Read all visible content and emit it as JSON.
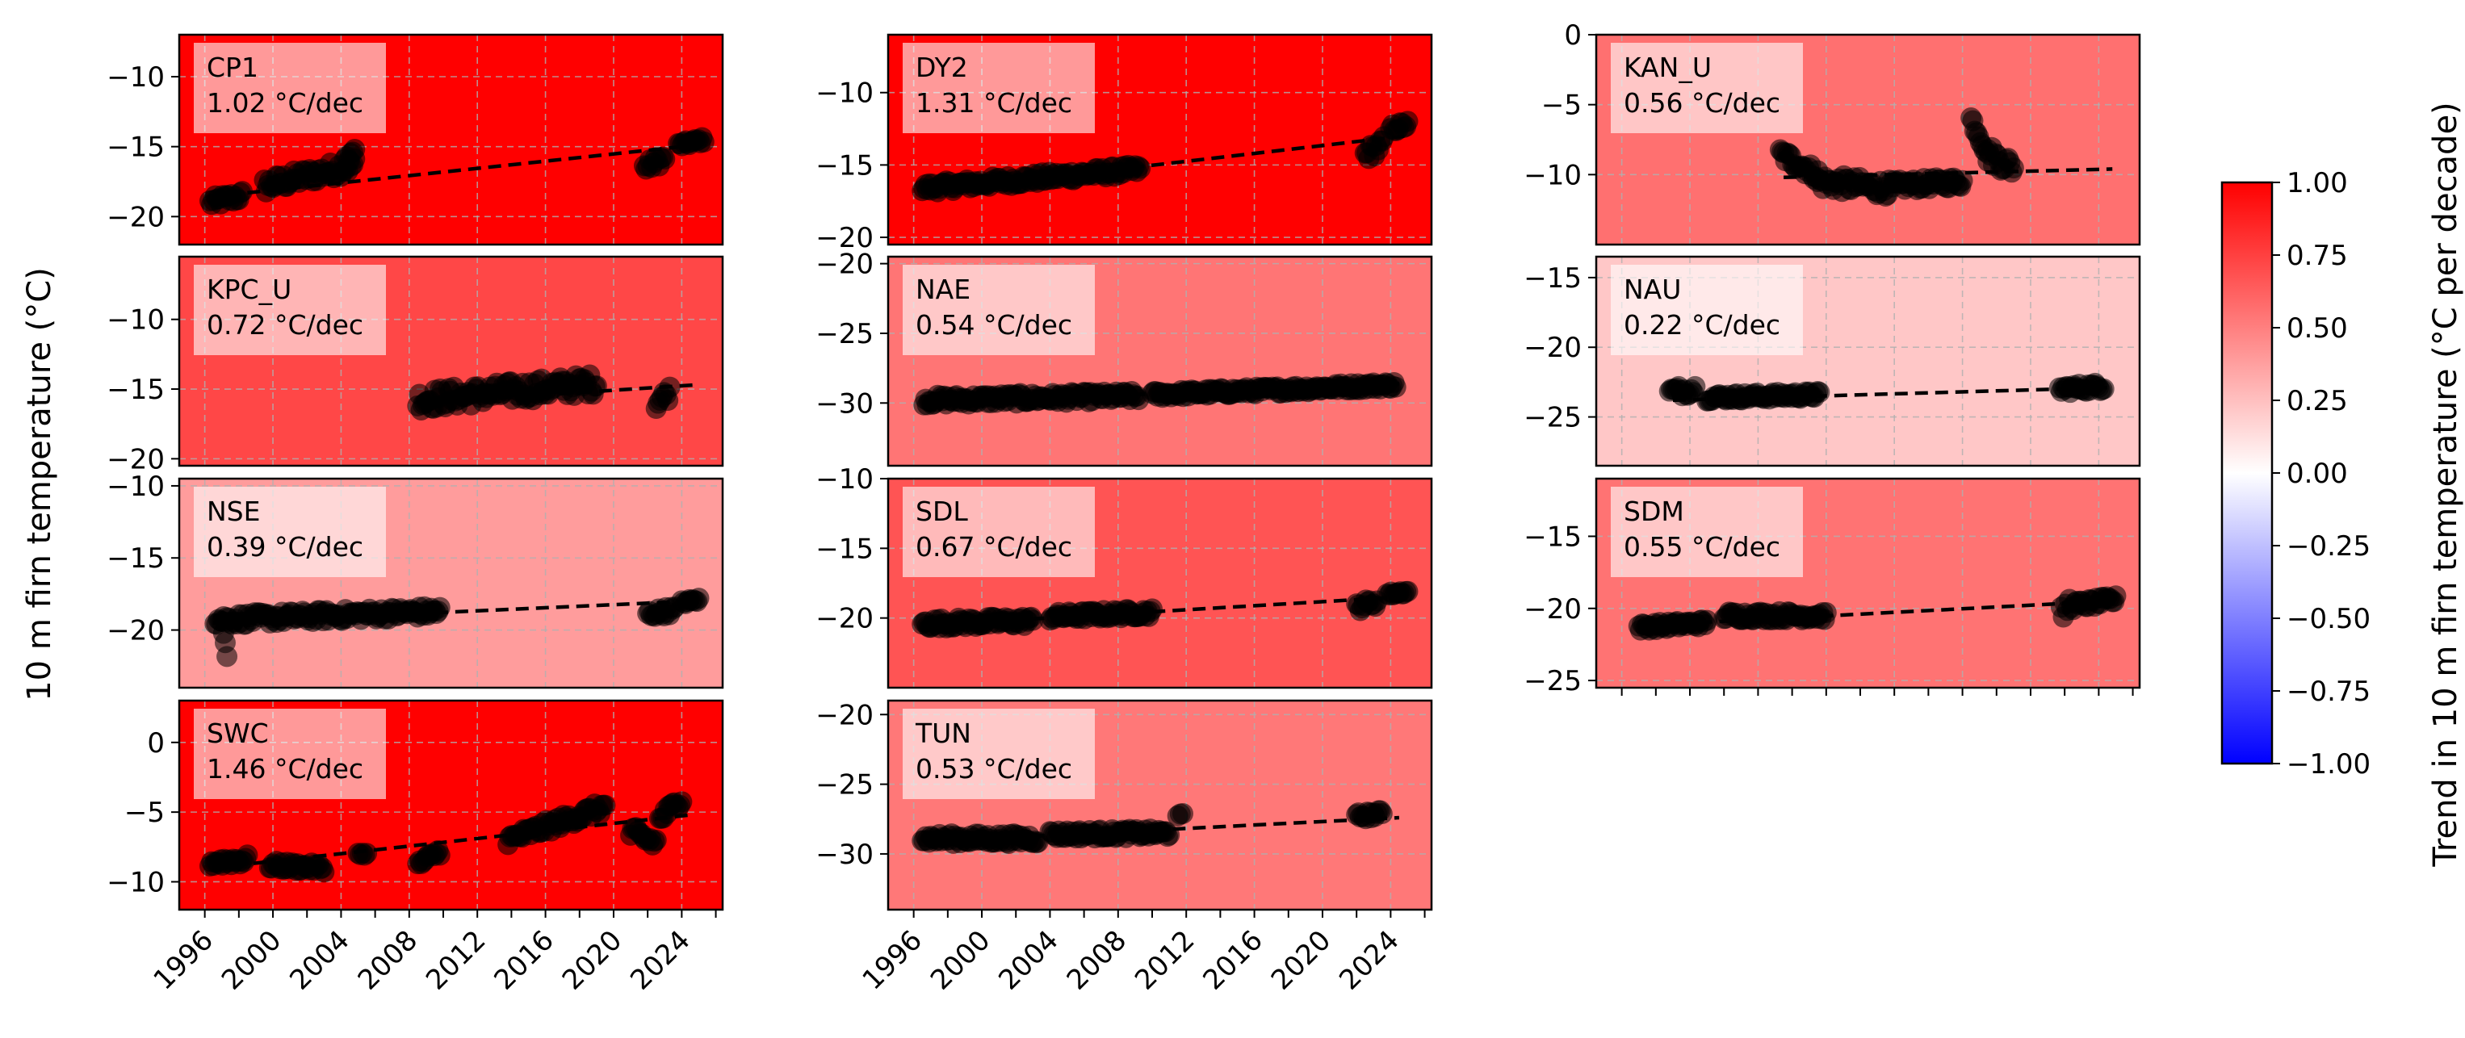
{
  "figure": {
    "ylabel": "10 m firn temperature (°C)",
    "colorbar": {
      "label": "Trend in 10 m firn temperature (°C per decade)",
      "min": -1.0,
      "max": 1.0,
      "ticks": [
        "1.00",
        "0.75",
        "0.50",
        "0.25",
        "0.00",
        "−0.25",
        "−0.50",
        "−0.75",
        "−1.00"
      ],
      "colormap": "bwr",
      "colors": {
        "low": "#0000ff",
        "mid": "#ffffff",
        "high": "#ff0000"
      }
    },
    "x_tick_labels": [
      "1996",
      "2000",
      "2004",
      "2008",
      "2012",
      "2016",
      "2020",
      "2024"
    ]
  },
  "chart_data": [
    {
      "type": "scatter",
      "site": "CP1",
      "trend_label": "1.02 °C/dec",
      "trend": 1.02,
      "ylim": [
        -22,
        -7
      ],
      "yticks": [
        -20,
        -15,
        -10
      ],
      "trend_line": [
        [
          1998.5,
          -18.3
        ],
        [
          2024.8,
          -14.9
        ]
      ],
      "segments": [
        {
          "x": [
            1996.3,
            1998.2
          ],
          "y": [
            -19.0,
            -18.5
          ],
          "noise": 0.4
        },
        {
          "x": [
            1999.5,
            2004.8
          ],
          "y": [
            -17.8,
            -16.3
          ],
          "noise": 0.6
        },
        {
          "x": [
            2004.2,
            2004.8
          ],
          "y": [
            -16.0,
            -15.2
          ],
          "noise": 0.3
        },
        {
          "x": [
            2021.8,
            2023.0
          ],
          "y": [
            -16.5,
            -15.8
          ],
          "noise": 0.4
        },
        {
          "x": [
            2023.8,
            2025.3
          ],
          "y": [
            -14.9,
            -14.5
          ],
          "noise": 0.2
        }
      ]
    },
    {
      "type": "scatter",
      "site": "DY2",
      "trend_label": "1.31 °C/dec",
      "trend": 1.31,
      "ylim": [
        -20.5,
        -6
      ],
      "yticks": [
        -20,
        -15,
        -10
      ],
      "trend_line": [
        [
          1997.0,
          -16.8
        ],
        [
          2024.8,
          -13.0
        ]
      ],
      "segments": [
        {
          "x": [
            1996.5,
            2009.3
          ],
          "y": [
            -16.6,
            -15.3
          ],
          "noise": 0.35
        },
        {
          "x": [
            2022.5,
            2023.6
          ],
          "y": [
            -14.3,
            -13.5
          ],
          "noise": 0.5
        },
        {
          "x": [
            2024.0,
            2025.0
          ],
          "y": [
            -12.5,
            -12.2
          ],
          "noise": 0.3
        }
      ]
    },
    {
      "type": "scatter",
      "site": "KAN_U",
      "trend_label": "0.56 °C/dec",
      "trend": 0.56,
      "ylim": [
        -15,
        0
      ],
      "yticks": [
        -10,
        -5,
        0
      ],
      "trend_line": [
        [
          2005.5,
          -10.2
        ],
        [
          2024.8,
          -9.6
        ]
      ],
      "segments": [
        {
          "x": [
            2005.3,
            2007.5
          ],
          "y": [
            -8.5,
            -10.0
          ],
          "noise": 0.5
        },
        {
          "x": [
            2007.5,
            2012.0
          ],
          "y": [
            -10.5,
            -11.0
          ],
          "noise": 0.6
        },
        {
          "x": [
            2012.0,
            2016.0
          ],
          "y": [
            -10.8,
            -10.5
          ],
          "noise": 0.4
        },
        {
          "x": [
            2016.5,
            2017.5
          ],
          "y": [
            -6.0,
            -8.5
          ],
          "noise": 0.4
        },
        {
          "x": [
            2017.5,
            2019.0
          ],
          "y": [
            -8.5,
            -9.5
          ],
          "noise": 0.7
        }
      ]
    },
    {
      "type": "scatter",
      "site": "KPC_U",
      "trend_label": "0.72 °C/dec",
      "trend": 0.72,
      "ylim": [
        -20.5,
        -5.5
      ],
      "yticks": [
        -20,
        -15,
        -10
      ],
      "trend_line": [
        [
          2008.5,
          -16.0
        ],
        [
          2024.8,
          -14.7
        ]
      ],
      "segments": [
        {
          "x": [
            2008.5,
            2019.0
          ],
          "y": [
            -15.8,
            -14.6
          ],
          "noise": 0.75
        },
        {
          "x": [
            2022.5,
            2023.3
          ],
          "y": [
            -16.0,
            -15.2
          ],
          "noise": 0.5
        }
      ]
    },
    {
      "type": "scatter",
      "site": "NAE",
      "trend_label": "0.54 °C/dec",
      "trend": 0.54,
      "ylim": [
        -34.5,
        -19.5
      ],
      "yticks": [
        -30,
        -25,
        -20
      ],
      "trend_line": [
        [
          1997.0,
          -30.0
        ],
        [
          2024.5,
          -28.6
        ]
      ],
      "segments": [
        {
          "x": [
            1996.6,
            2009.2
          ],
          "y": [
            -29.8,
            -29.5
          ],
          "noise": 0.35
        },
        {
          "x": [
            2010.0,
            2024.3
          ],
          "y": [
            -29.4,
            -28.7
          ],
          "noise": 0.25
        }
      ]
    },
    {
      "type": "scatter",
      "site": "NAU",
      "trend_label": "0.22 °C/dec",
      "trend": 0.22,
      "ylim": [
        -28.5,
        -13.5
      ],
      "yticks": [
        -25,
        -20,
        -15
      ],
      "trend_line": [
        [
          1999.0,
          -23.8
        ],
        [
          2024.5,
          -22.9
        ]
      ],
      "segments": [
        {
          "x": [
            1998.8,
            2000.3
          ],
          "y": [
            -23.2,
            -23.0
          ],
          "noise": 0.4
        },
        {
          "x": [
            2001.0,
            2007.6
          ],
          "y": [
            -23.6,
            -23.4
          ],
          "noise": 0.25
        },
        {
          "x": [
            2021.7,
            2024.3
          ],
          "y": [
            -23.0,
            -22.8
          ],
          "noise": 0.3
        }
      ]
    },
    {
      "type": "scatter",
      "site": "NSE",
      "trend_label": "0.39 °C/dec",
      "trend": 0.39,
      "ylim": [
        -24,
        -9.5
      ],
      "yticks": [
        -20,
        -15,
        -10
      ],
      "trend_line": [
        [
          1996.5,
          -19.5
        ],
        [
          2024.5,
          -18.0
        ]
      ],
      "segments": [
        {
          "x": [
            1996.6,
            2009.8
          ],
          "y": [
            -19.3,
            -18.7
          ],
          "noise": 0.4
        },
        {
          "x": [
            1997.1,
            1997.3
          ],
          "y": [
            -20.3,
            -21.8
          ],
          "noise": 0.3
        },
        {
          "x": [
            2022.0,
            2023.6
          ],
          "y": [
            -18.9,
            -18.6
          ],
          "noise": 0.3
        },
        {
          "x": [
            2024.0,
            2025.0
          ],
          "y": [
            -18.1,
            -17.9
          ],
          "noise": 0.15
        }
      ]
    },
    {
      "type": "scatter",
      "site": "SDL",
      "trend_label": "0.67 °C/dec",
      "trend": 0.67,
      "ylim": [
        -25,
        -10
      ],
      "yticks": [
        -20,
        -15,
        -10
      ],
      "trend_line": [
        [
          1997.0,
          -20.5
        ],
        [
          2024.5,
          -18.5
        ]
      ],
      "segments": [
        {
          "x": [
            1996.5,
            2003.0
          ],
          "y": [
            -20.4,
            -20.2
          ],
          "noise": 0.35
        },
        {
          "x": [
            2004.0,
            2010.0
          ],
          "y": [
            -19.9,
            -19.6
          ],
          "noise": 0.3
        },
        {
          "x": [
            2022.0,
            2023.2
          ],
          "y": [
            -19.2,
            -18.8
          ],
          "noise": 0.35
        },
        {
          "x": [
            2023.8,
            2025.0
          ],
          "y": [
            -18.3,
            -18.1
          ],
          "noise": 0.15
        }
      ]
    },
    {
      "type": "scatter",
      "site": "SDM",
      "trend_label": "0.55 °C/dec",
      "trend": 0.55,
      "ylim": [
        -25.5,
        -11
      ],
      "yticks": [
        -25,
        -20,
        -15
      ],
      "trend_line": [
        [
          1997.0,
          -21.2
        ],
        [
          2024.5,
          -19.5
        ]
      ],
      "segments": [
        {
          "x": [
            1997.0,
            2001.0
          ],
          "y": [
            -21.3,
            -21.0
          ],
          "noise": 0.25
        },
        {
          "x": [
            2002.0,
            2008.0
          ],
          "y": [
            -20.5,
            -20.5
          ],
          "noise": 0.3
        },
        {
          "x": [
            2021.8,
            2022.4
          ],
          "y": [
            -20.5,
            -19.5
          ],
          "noise": 0.6
        },
        {
          "x": [
            2022.5,
            2025.0
          ],
          "y": [
            -19.8,
            -19.4
          ],
          "noise": 0.3
        }
      ]
    },
    {
      "type": "scatter",
      "site": "SWC",
      "trend_label": "1.46 °C/dec",
      "trend": 1.46,
      "ylim": [
        -12,
        3
      ],
      "yticks": [
        -10,
        -5,
        0
      ],
      "trend_line": [
        [
          1996.5,
          -9.0
        ],
        [
          2024.5,
          -5.2
        ]
      ],
      "segments": [
        {
          "x": [
            1996.3,
            1998.5
          ],
          "y": [
            -8.6,
            -8.4
          ],
          "noise": 0.35
        },
        {
          "x": [
            1999.8,
            2003.0
          ],
          "y": [
            -8.8,
            -9.0
          ],
          "noise": 0.3
        },
        {
          "x": [
            2005.0,
            2005.5
          ],
          "y": [
            -8.0,
            -8.0
          ],
          "noise": 0.1
        },
        {
          "x": [
            2008.5,
            2009.8
          ],
          "y": [
            -8.8,
            -7.8
          ],
          "noise": 0.3
        },
        {
          "x": [
            2013.8,
            2019.5
          ],
          "y": [
            -7.0,
            -4.6
          ],
          "noise": 0.45
        },
        {
          "x": [
            2021.0,
            2022.5
          ],
          "y": [
            -6.5,
            -7.2
          ],
          "noise": 0.55
        },
        {
          "x": [
            2022.7,
            2024.0
          ],
          "y": [
            -5.5,
            -4.0
          ],
          "noise": 0.4
        }
      ]
    },
    {
      "type": "scatter",
      "site": "TUN",
      "trend_label": "0.53 °C/dec",
      "trend": 0.53,
      "ylim": [
        -34,
        -19
      ],
      "yticks": [
        -30,
        -25,
        -20
      ],
      "trend_line": [
        [
          1997.0,
          -29.1
        ],
        [
          2024.5,
          -27.4
        ]
      ],
      "segments": [
        {
          "x": [
            1996.5,
            2003.3
          ],
          "y": [
            -28.9,
            -28.9
          ],
          "noise": 0.35
        },
        {
          "x": [
            2004.0,
            2011.0
          ],
          "y": [
            -28.6,
            -28.5
          ],
          "noise": 0.3
        },
        {
          "x": [
            2011.5,
            2011.8
          ],
          "y": [
            -27.2,
            -27.2
          ],
          "noise": 0.1
        },
        {
          "x": [
            2022.0,
            2023.5
          ],
          "y": [
            -27.3,
            -27.1
          ],
          "noise": 0.25
        }
      ]
    }
  ]
}
